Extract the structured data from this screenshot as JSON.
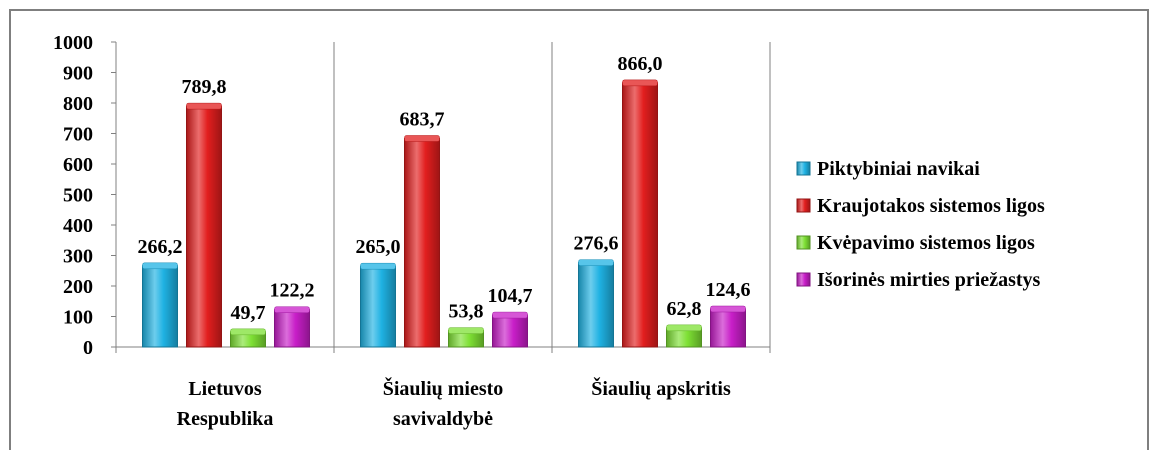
{
  "chart_data": {
    "type": "bar",
    "title": "",
    "xlabel": "",
    "ylabel": "",
    "ylim": [
      0,
      1000
    ],
    "yticks": [
      "0",
      "100",
      "200",
      "300",
      "400",
      "500",
      "600",
      "700",
      "800",
      "900",
      "1000"
    ],
    "grid": false,
    "legend_position": "right",
    "categories": [
      [
        "Lietuvos",
        "Respublika"
      ],
      [
        "Šiaulių miesto",
        "savivaldybė"
      ],
      [
        "Šiaulių apskritis"
      ]
    ],
    "series": [
      {
        "name": "Piktybiniai navikai",
        "color": "#1fb2e3",
        "values": [
          266.2,
          265.0,
          276.6
        ],
        "labels": [
          "266,2",
          "265,0",
          "276,6"
        ]
      },
      {
        "name": "Kraujotakos sistemos ligos",
        "color": "#e21e1e",
        "values": [
          789.8,
          683.7,
          866.0
        ],
        "labels": [
          "789,8",
          "683,7",
          "866,0"
        ]
      },
      {
        "name": "Kvėpavimo sistemos ligos",
        "color": "#7ee034",
        "values": [
          49.7,
          53.8,
          62.8
        ],
        "labels": [
          "49,7",
          "53,8",
          "62,8"
        ]
      },
      {
        "name": "Išorinės mirties priežastys",
        "color": "#c81ec8",
        "values": [
          122.2,
          104.7,
          124.6
        ],
        "labels": [
          "122,2",
          "104,7",
          "124,6"
        ]
      }
    ]
  }
}
